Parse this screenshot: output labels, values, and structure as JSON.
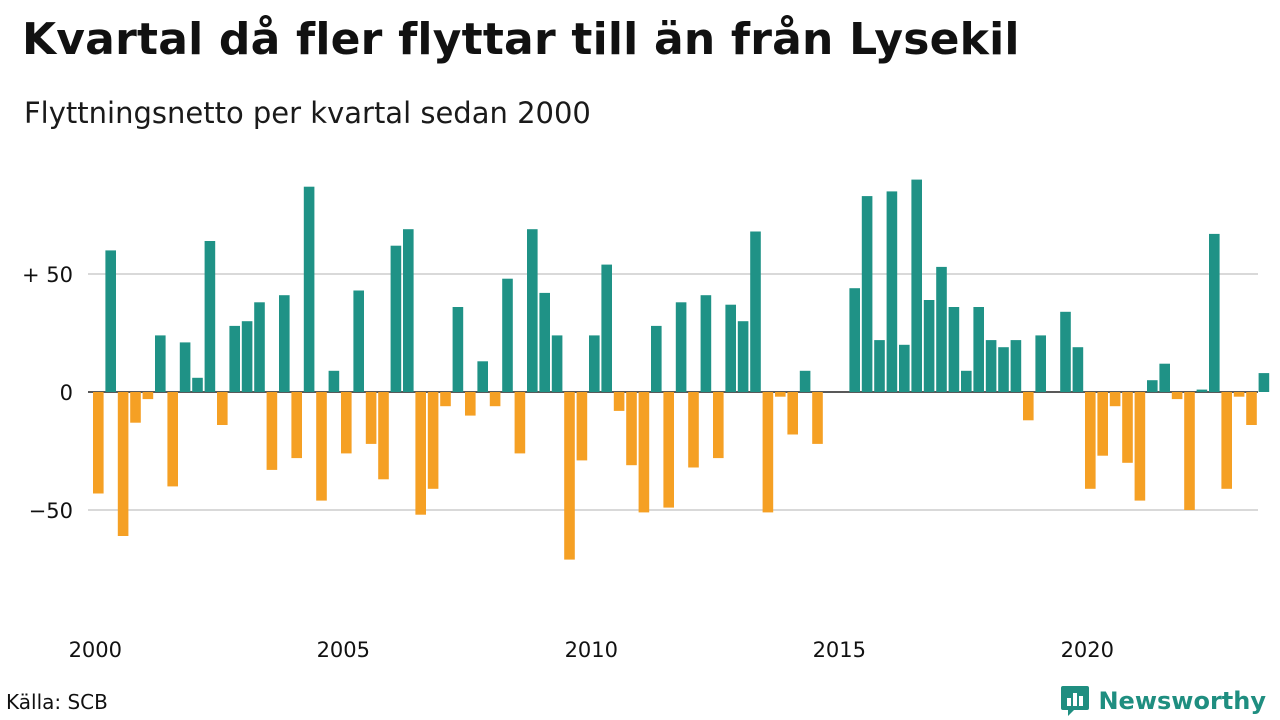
{
  "title": "Kvartal då fler flyttar till än från Lysekil",
  "subtitle": "Flyttningsnetto per kvartal sedan 2000",
  "source": "Källa: SCB",
  "brand": "Newsworthy",
  "colors": {
    "positive": "#1f9286",
    "negative": "#f5a024",
    "grid": "#d9d9d9",
    "zero": "#222222",
    "brand": "#1f8e80"
  },
  "chart_data": {
    "type": "bar",
    "title": "Kvartal då fler flyttar till än från Lysekil",
    "subtitle": "Flyttningsnetto per kvartal sedan 2000",
    "xlabel": "",
    "ylabel": "",
    "ylim": [
      -85,
      95
    ],
    "y_ticks": [
      {
        "value": 50,
        "label": "+ 50"
      },
      {
        "value": 0,
        "label": "0"
      },
      {
        "value": -50,
        "label": "−50"
      }
    ],
    "x_ticks": [
      {
        "year": 2000,
        "label": "2000"
      },
      {
        "year": 2005,
        "label": "2005"
      },
      {
        "year": 2010,
        "label": "2010"
      },
      {
        "year": 2015,
        "label": "2015"
      },
      {
        "year": 2020,
        "label": "2020"
      }
    ],
    "start_year": 2000,
    "values": [
      -43,
      60,
      -61,
      -13,
      -3,
      24,
      -40,
      21,
      6,
      64,
      -14,
      28,
      30,
      38,
      -33,
      41,
      -28,
      87,
      -46,
      9,
      -26,
      43,
      -22,
      -37,
      62,
      69,
      -52,
      -41,
      -6,
      36,
      -10,
      13,
      -6,
      48,
      -26,
      69,
      42,
      24,
      -71,
      -29,
      24,
      54,
      -8,
      -31,
      -51,
      28,
      -49,
      38,
      -32,
      41,
      -28,
      37,
      30,
      68,
      -51,
      -2,
      -18,
      9,
      -22,
      0,
      0,
      44,
      83,
      22,
      85,
      20,
      90,
      39,
      53,
      36,
      9,
      36,
      22,
      19,
      22,
      -12,
      24,
      0,
      34,
      19,
      -41,
      -27,
      -6,
      -30,
      -46,
      5,
      12,
      -3,
      -50,
      1,
      67,
      -41,
      -2,
      -14,
      8
    ]
  }
}
